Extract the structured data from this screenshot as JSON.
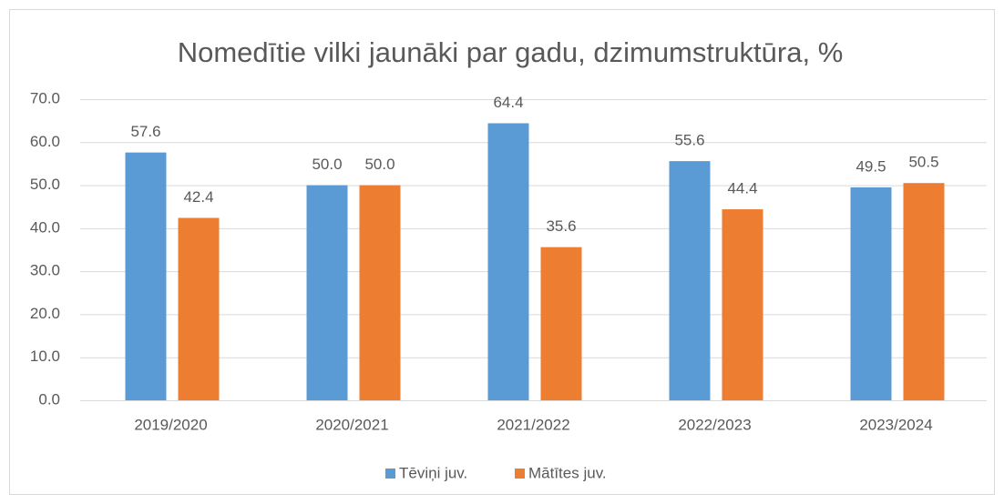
{
  "chart_data": {
    "type": "bar",
    "title": "Nomedītie vilki jaunāki par gadu, dzimumstruktūra, %",
    "categories": [
      "2019/2020",
      "2020/2021",
      "2021/2022",
      "2022/2023",
      "2023/2024"
    ],
    "series": [
      {
        "name": "Tēviņi juv.",
        "color": "#5b9bd5",
        "values": [
          57.6,
          50,
          64.4,
          55.6,
          49.5
        ],
        "value_labels": [
          "57.6",
          "50.0",
          "64.4",
          "55.6",
          "49.5"
        ]
      },
      {
        "name": "Mātītes juv.",
        "color": "#ed7d31",
        "values": [
          42.4,
          50,
          35.6,
          44.4,
          50.5
        ],
        "value_labels": [
          "42.4",
          "50.0",
          "35.6",
          "44.4",
          "50.5"
        ]
      }
    ],
    "ylim": [
      0,
      70
    ],
    "yticks": [
      {
        "value": 0,
        "label": "0.0"
      },
      {
        "value": 10,
        "label": "10.0"
      },
      {
        "value": 20,
        "label": "20.0"
      },
      {
        "value": 30,
        "label": "30.0"
      },
      {
        "value": 40,
        "label": "40.0"
      },
      {
        "value": 50,
        "label": "50.0"
      },
      {
        "value": 60,
        "label": "60.0"
      },
      {
        "value": 70,
        "label": "70.0"
      }
    ],
    "grid": true,
    "legend": "bottom"
  }
}
